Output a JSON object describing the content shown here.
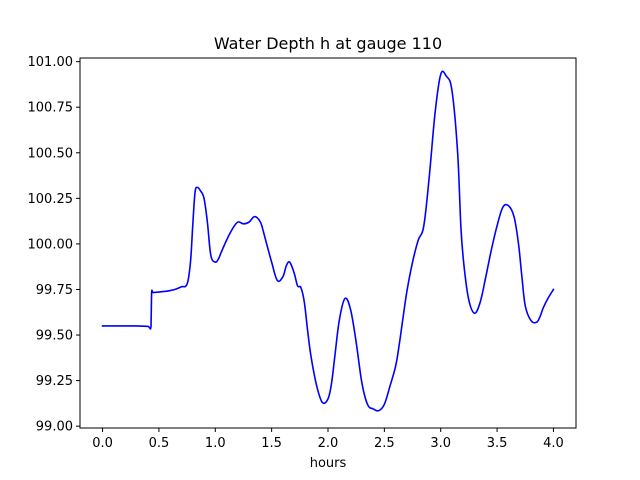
{
  "chart_data": {
    "type": "line",
    "title": "Water Depth h at gauge 110",
    "xlabel": "hours",
    "ylabel": "",
    "xlim": [
      -0.2,
      4.2
    ],
    "ylim": [
      98.99,
      101.02
    ],
    "x_ticks": [
      0.0,
      0.5,
      1.0,
      1.5,
      2.0,
      2.5,
      3.0,
      3.5,
      4.0
    ],
    "x_tick_labels": [
      "0.0",
      "0.5",
      "1.0",
      "1.5",
      "2.0",
      "2.5",
      "3.0",
      "3.5",
      "4.0"
    ],
    "y_ticks": [
      99.0,
      99.25,
      99.5,
      99.75,
      100.0,
      100.25,
      100.5,
      100.75,
      101.0
    ],
    "y_tick_labels": [
      "99.00",
      "99.25",
      "99.50",
      "99.75",
      "100.00",
      "100.25",
      "100.50",
      "100.75",
      "101.00"
    ],
    "grid": false,
    "legend": false,
    "series": [
      {
        "color": "#0000ff",
        "x": [
          0.0,
          0.1,
          0.2,
          0.3,
          0.4,
          0.43,
          0.435,
          0.45,
          0.5,
          0.55,
          0.6,
          0.65,
          0.7,
          0.75,
          0.78,
          0.8,
          0.82,
          0.84,
          0.87,
          0.9,
          0.93,
          0.96,
          1.0,
          1.03,
          1.05,
          1.1,
          1.15,
          1.2,
          1.25,
          1.3,
          1.35,
          1.4,
          1.43,
          1.46,
          1.5,
          1.55,
          1.6,
          1.63,
          1.66,
          1.7,
          1.73,
          1.76,
          1.79,
          1.82,
          1.85,
          1.9,
          1.95,
          2.0,
          2.03,
          2.06,
          2.1,
          2.15,
          2.2,
          2.25,
          2.3,
          2.35,
          2.4,
          2.45,
          2.5,
          2.55,
          2.6,
          2.63,
          2.66,
          2.7,
          2.75,
          2.8,
          2.85,
          2.9,
          2.95,
          3.0,
          3.05,
          3.1,
          3.15,
          3.18,
          3.21,
          3.25,
          3.3,
          3.35,
          3.4,
          3.45,
          3.5,
          3.55,
          3.6,
          3.65,
          3.69,
          3.72,
          3.75,
          3.8,
          3.85,
          3.88,
          3.91,
          3.95,
          4.0
        ],
        "y": [
          99.55,
          99.55,
          99.55,
          99.55,
          99.548,
          99.548,
          99.73,
          99.733,
          99.736,
          99.739,
          99.744,
          99.752,
          99.765,
          99.78,
          99.9,
          100.1,
          100.28,
          100.31,
          100.29,
          100.25,
          100.12,
          99.94,
          99.9,
          99.92,
          99.95,
          100.02,
          100.08,
          100.12,
          100.11,
          100.12,
          100.15,
          100.12,
          100.06,
          99.99,
          99.9,
          99.8,
          99.82,
          99.88,
          99.9,
          99.84,
          99.77,
          99.76,
          99.68,
          99.52,
          99.38,
          99.22,
          99.13,
          99.15,
          99.23,
          99.38,
          99.58,
          99.7,
          99.64,
          99.46,
          99.24,
          99.12,
          99.095,
          99.085,
          99.12,
          99.22,
          99.33,
          99.44,
          99.57,
          99.74,
          99.9,
          100.02,
          100.1,
          100.38,
          100.72,
          100.93,
          100.92,
          100.84,
          100.5,
          100.08,
          99.86,
          99.69,
          99.62,
          99.68,
          99.82,
          99.97,
          100.1,
          100.2,
          100.21,
          100.15,
          100.0,
          99.82,
          99.66,
          99.58,
          99.57,
          99.6,
          99.65,
          99.7,
          99.75
        ],
        "y_note": ""
      }
    ]
  }
}
